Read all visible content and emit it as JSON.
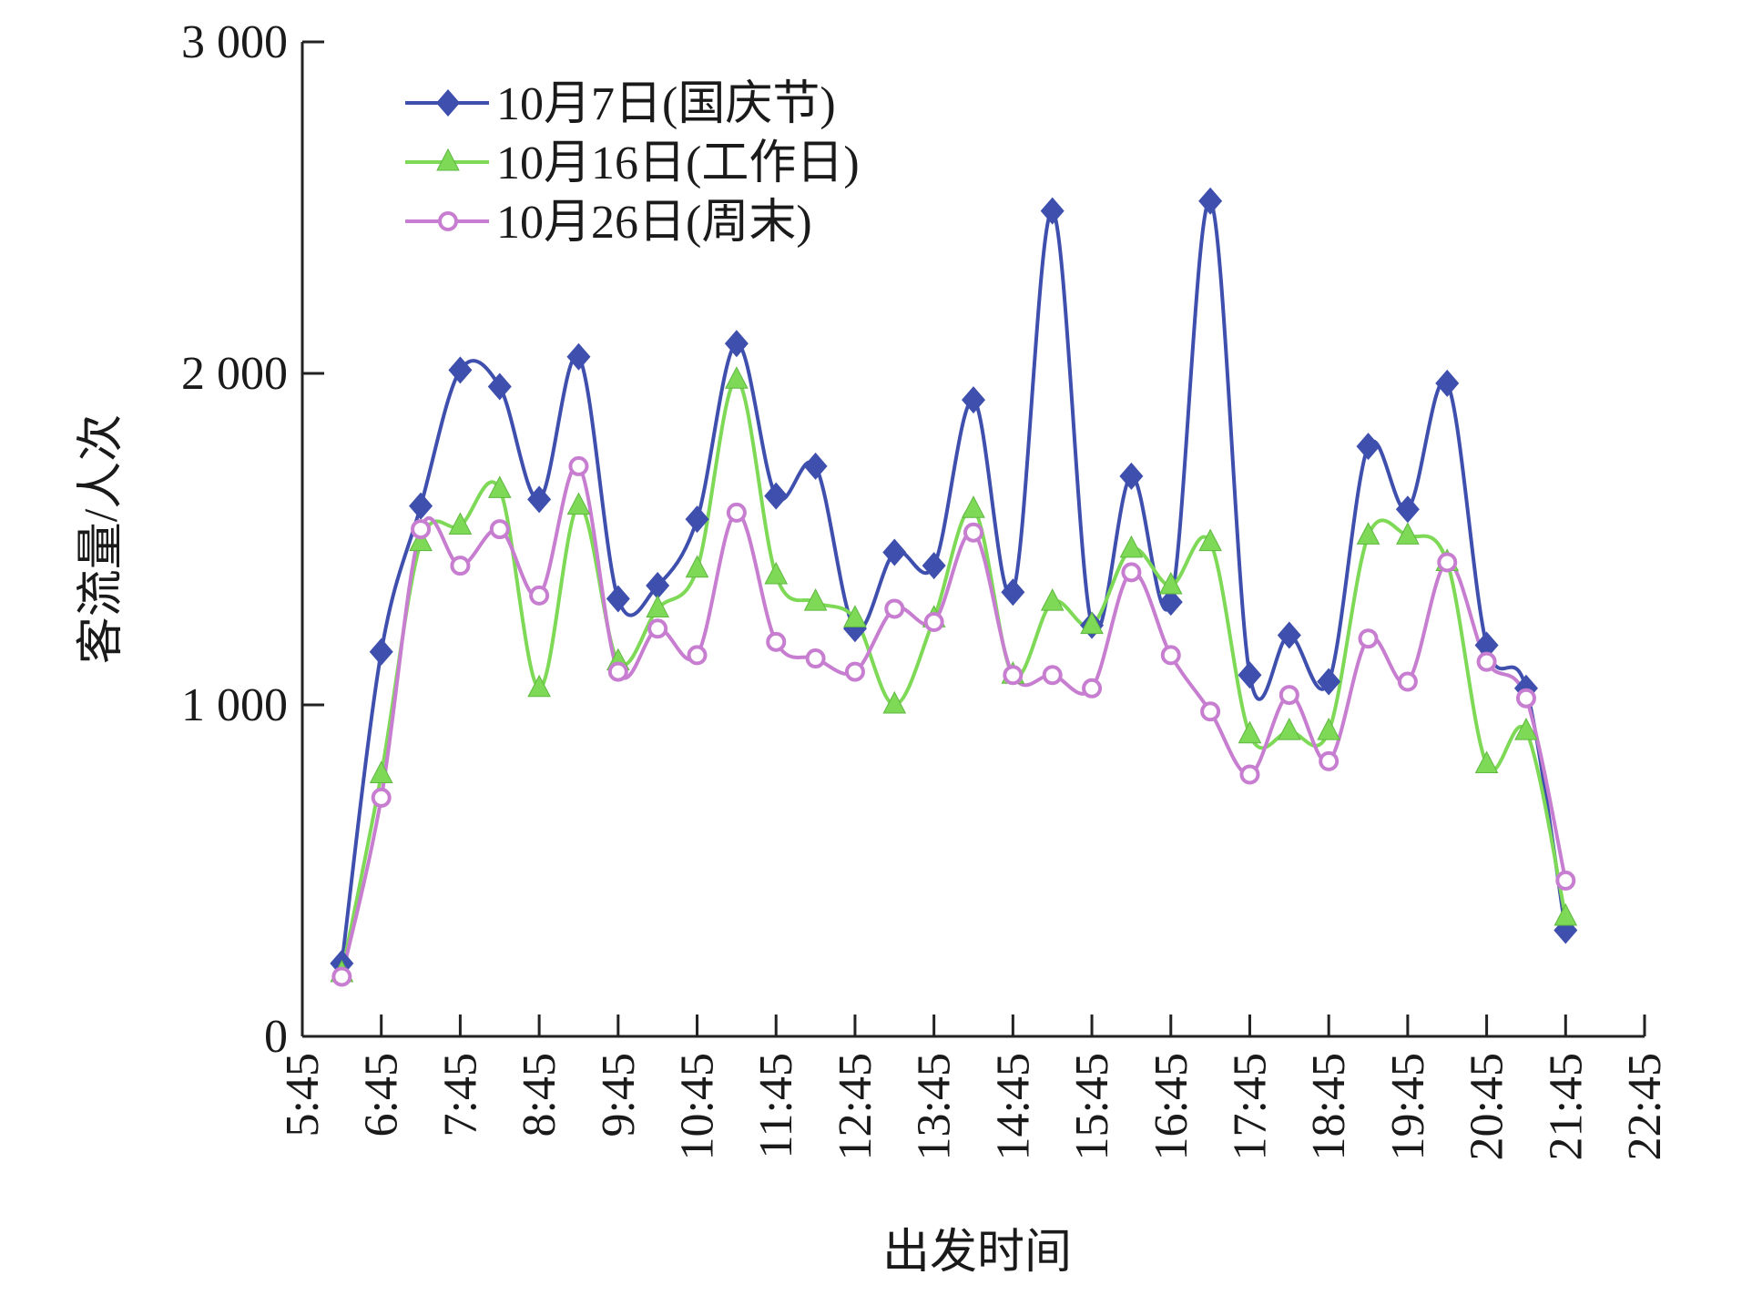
{
  "chart_data": {
    "type": "line",
    "x_label": "出发时间",
    "y_label": "客流量/人次",
    "x": [
      6.25,
      6.75,
      7.25,
      7.75,
      8.25,
      8.75,
      9.25,
      9.75,
      10.25,
      10.75,
      11.25,
      11.75,
      12.25,
      12.75,
      13.25,
      13.75,
      14.25,
      14.75,
      15.25,
      15.75,
      16.25,
      16.75,
      17.25,
      17.75,
      18.25,
      18.75,
      19.25,
      19.75,
      20.25,
      20.75,
      21.25,
      21.75
    ],
    "series": [
      {
        "name": "10月7日(国庆节)",
        "color": "#3f4fae",
        "marker": "diamond",
        "values": [
          220,
          1160,
          1600,
          2010,
          1960,
          1620,
          2050,
          1320,
          1360,
          1560,
          2090,
          1630,
          1720,
          1230,
          1460,
          1420,
          1920,
          1340,
          2490,
          1240,
          1690,
          1310,
          2520,
          1090,
          1210,
          1070,
          1780,
          1590,
          1970,
          1180,
          1050,
          320
        ]
      },
      {
        "name": "10月16日(工作日)",
        "color": "#7ed957",
        "marker": "triangle",
        "values": [
          190,
          790,
          1490,
          1540,
          1650,
          1050,
          1600,
          1130,
          1290,
          1410,
          1980,
          1390,
          1310,
          1260,
          1000,
          1260,
          1590,
          1090,
          1310,
          1240,
          1470,
          1360,
          1490,
          910,
          920,
          920,
          1510,
          1510,
          1430,
          820,
          920,
          360
        ]
      },
      {
        "name": "10月26日(周末)",
        "color": "#c77dd0",
        "marker": "circle",
        "values": [
          180,
          720,
          1530,
          1420,
          1530,
          1330,
          1720,
          1100,
          1230,
          1150,
          1580,
          1190,
          1140,
          1100,
          1290,
          1250,
          1520,
          1090,
          1090,
          1050,
          1400,
          1150,
          980,
          790,
          1030,
          830,
          1200,
          1070,
          1430,
          1130,
          1020,
          470
        ]
      }
    ],
    "xlim": [
      5.75,
      22.75
    ],
    "xticks": [
      {
        "value": 5.75,
        "label": "5:45"
      },
      {
        "value": 6.75,
        "label": "6:45"
      },
      {
        "value": 7.75,
        "label": "7:45"
      },
      {
        "value": 8.75,
        "label": "8:45"
      },
      {
        "value": 9.75,
        "label": "9:45"
      },
      {
        "value": 10.75,
        "label": "10:45"
      },
      {
        "value": 11.75,
        "label": "11:45"
      },
      {
        "value": 12.75,
        "label": "12:45"
      },
      {
        "value": 13.75,
        "label": "13:45"
      },
      {
        "value": 14.75,
        "label": "14:45"
      },
      {
        "value": 15.75,
        "label": "15:45"
      },
      {
        "value": 16.75,
        "label": "16:45"
      },
      {
        "value": 17.75,
        "label": "17:45"
      },
      {
        "value": 18.75,
        "label": "18:45"
      },
      {
        "value": 19.75,
        "label": "19:45"
      },
      {
        "value": 20.75,
        "label": "20:45"
      },
      {
        "value": 21.75,
        "label": "21:45"
      },
      {
        "value": 22.75,
        "label": "22:45"
      }
    ],
    "ylim": [
      0,
      3000
    ],
    "yticks": [
      0,
      {
        "value": 1000,
        "label": "1 000"
      },
      {
        "value": 2000,
        "label": "2 000"
      },
      {
        "value": 3000,
        "label": "3 000"
      }
    ],
    "legend": "upper left"
  }
}
